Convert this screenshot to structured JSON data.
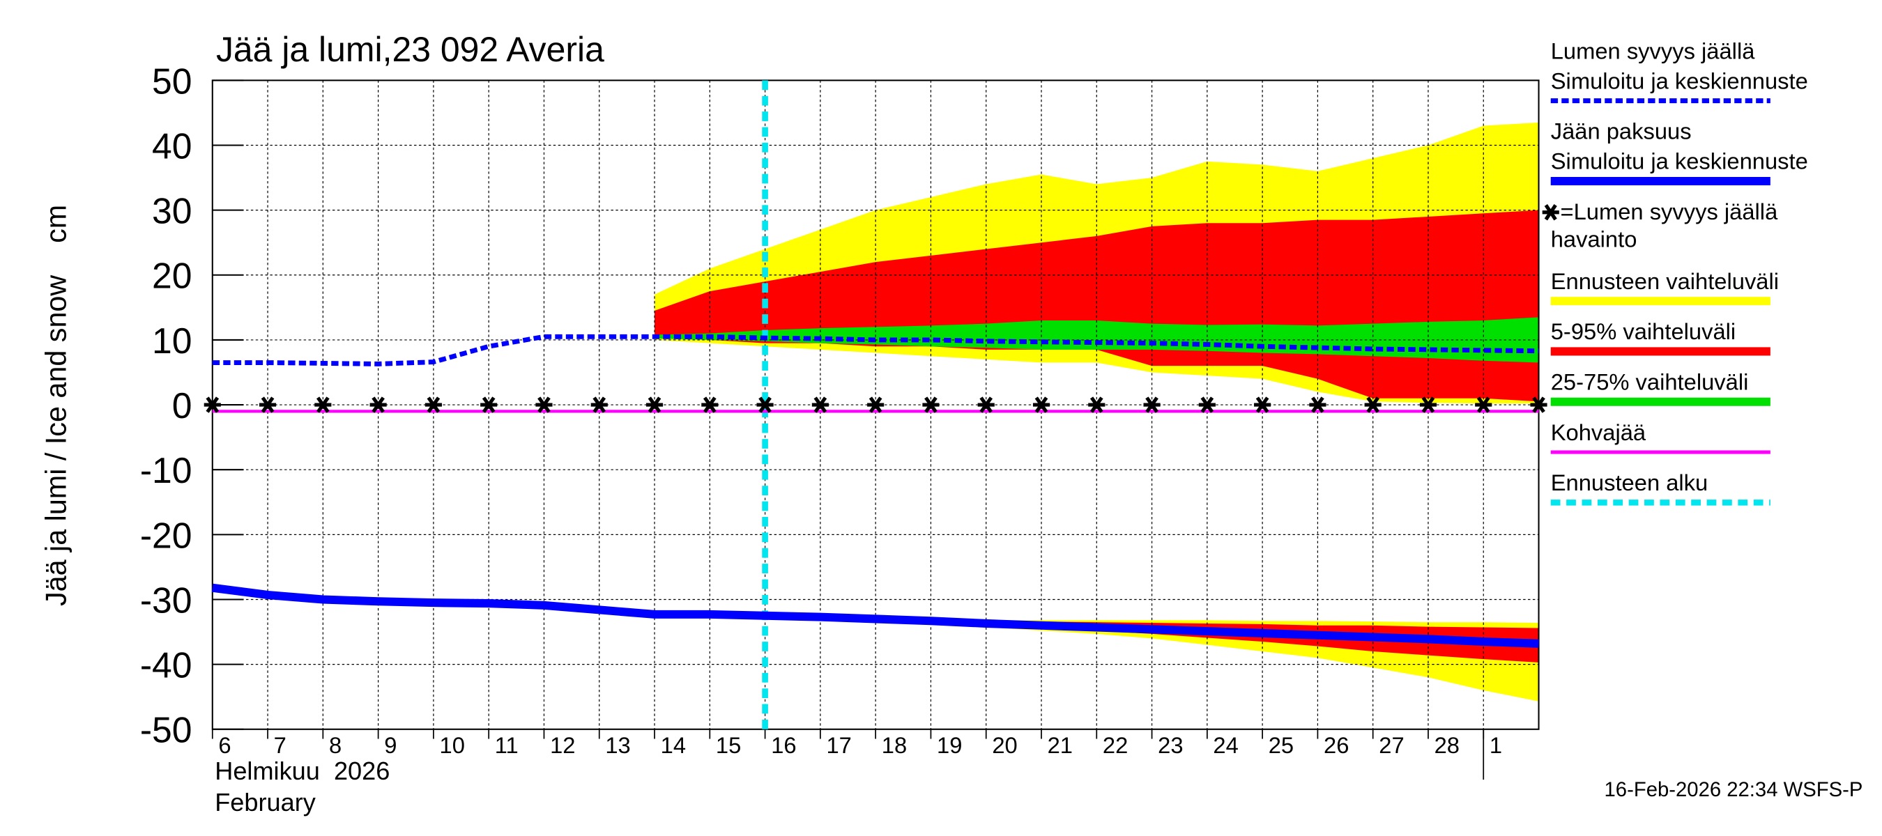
{
  "chart_data": {
    "type": "line",
    "title": "Jää ja lumi,23 092 Averia",
    "y_label": "Jää ja lumi / Ice and snow    cm",
    "x_label_lines": [
      "Helmikuu  2026",
      "February"
    ],
    "timestamp": "16-Feb-2026 22:34 WSFS-P",
    "categories": [
      "6",
      "7",
      "8",
      "9",
      "10",
      "11",
      "12",
      "13",
      "14",
      "15",
      "16",
      "17",
      "18",
      "19",
      "20",
      "21",
      "22",
      "23",
      "24",
      "25",
      "26",
      "27",
      "28",
      "1",
      null
    ],
    "ylim": [
      -50,
      50
    ],
    "yticks": [
      -50,
      -40,
      -30,
      -20,
      -10,
      0,
      10,
      20,
      30,
      40,
      50
    ],
    "grid": true,
    "series": [
      {
        "name": "Lumen syvyys jäällä",
        "name2": "Simuloitu ja keskiennuste",
        "style": "dashed",
        "color": "#0000ff",
        "values": [
          6.5,
          6.5,
          6.4,
          6.3,
          6.6,
          9,
          10.5,
          10.5,
          10.5,
          10.5,
          10.3,
          10.2,
          10,
          10,
          9.8,
          9.7,
          9.6,
          9.5,
          9.3,
          9,
          8.8,
          8.6,
          8.5,
          8.4,
          8.3
        ]
      },
      {
        "name": "Jään paksuus",
        "name2": "Simuloitu ja keskiennuste",
        "style": "solid",
        "color": "#0000ff",
        "values": [
          -28.2,
          -29.3,
          -30,
          -30.3,
          -30.5,
          -30.6,
          -30.9,
          -31.6,
          -32.3,
          -32.3,
          -32.5,
          -32.7,
          -33,
          -33.3,
          -33.7,
          -34,
          -34.3,
          -34.6,
          -34.9,
          -35.2,
          -35.5,
          -35.8,
          -36.1,
          -36.5,
          -36.8
        ]
      },
      {
        "name": "=Lumen syvyys jäällä",
        "name2": "havainto",
        "style": "stars",
        "color": "#000000",
        "values": [
          0,
          0,
          0,
          0,
          0,
          0,
          0,
          0,
          0,
          0,
          0,
          0,
          0,
          0,
          0,
          0,
          0,
          0,
          0,
          0,
          0,
          0,
          0,
          0,
          0
        ]
      },
      {
        "name": "Ennusteen vaihteluväli",
        "style": "band",
        "color": "#ffff00",
        "snow_high": [
          null,
          null,
          null,
          null,
          null,
          null,
          null,
          null,
          17,
          21,
          24,
          27,
          30,
          32,
          34,
          35.5,
          34,
          35,
          37.5,
          37,
          36,
          38,
          40,
          43,
          43.5
        ],
        "snow_low": [
          null,
          null,
          null,
          null,
          null,
          null,
          null,
          null,
          10,
          9.5,
          9,
          8.5,
          8,
          7.5,
          7,
          6.5,
          6.5,
          5,
          4.5,
          4,
          2,
          0.5,
          0.3,
          0.2,
          0.2
        ],
        "ice_high": [
          null,
          null,
          null,
          null,
          null,
          null,
          null,
          null,
          -32.2,
          -32.3,
          -32.4,
          -32.6,
          -32.8,
          -33,
          -33.2,
          -33.2,
          -33.2,
          -33.2,
          -33.2,
          -33.3,
          -33.3,
          -33.4,
          -33.5,
          -33.5,
          -33.6
        ],
        "ice_low": [
          null,
          null,
          null,
          null,
          null,
          null,
          null,
          null,
          -32.4,
          -32.5,
          -32.7,
          -33,
          -33.3,
          -33.8,
          -34.3,
          -34.8,
          -35.3,
          -36,
          -37,
          -38,
          -39,
          -40.5,
          -42,
          -44,
          -45.7
        ]
      },
      {
        "name": "5-95% vaihteluväli",
        "style": "band",
        "color": "#ff0000",
        "snow_high": [
          null,
          null,
          null,
          null,
          null,
          null,
          null,
          null,
          14.5,
          17.5,
          19,
          20.5,
          22,
          23,
          24,
          25,
          26,
          27.5,
          28,
          28,
          28.5,
          28.5,
          29,
          29.5,
          30
        ],
        "snow_low": [
          null,
          null,
          null,
          null,
          null,
          null,
          null,
          null,
          10.5,
          10,
          9.5,
          9.5,
          9,
          9,
          8.5,
          8.5,
          8.5,
          6,
          6,
          6,
          4,
          1,
          1,
          1,
          0.5
        ],
        "ice_high": [
          null,
          null,
          null,
          null,
          null,
          null,
          null,
          null,
          -32.3,
          -32.4,
          -32.5,
          -32.7,
          -32.9,
          -33.1,
          -33.3,
          -33.4,
          -33.5,
          -33.6,
          -33.7,
          -33.8,
          -34,
          -34,
          -34.2,
          -34.3,
          -34.4
        ],
        "ice_low": [
          null,
          null,
          null,
          null,
          null,
          null,
          null,
          null,
          -32.3,
          -32.5,
          -32.6,
          -32.9,
          -33.2,
          -33.6,
          -34,
          -34.4,
          -34.8,
          -35.3,
          -35.9,
          -36.5,
          -37.2,
          -38,
          -38.6,
          -39.2,
          -39.7
        ]
      },
      {
        "name": "25-75% vaihteluväli",
        "style": "band",
        "color": "#00e000",
        "snow_high": [
          null,
          null,
          null,
          null,
          null,
          null,
          null,
          null,
          10.8,
          11,
          11.5,
          11.8,
          12,
          12.2,
          12.5,
          13,
          13,
          12.5,
          12.3,
          12.4,
          12.2,
          12.5,
          12.8,
          13,
          13.5
        ],
        "snow_low": [
          null,
          null,
          null,
          null,
          null,
          null,
          null,
          null,
          10.2,
          10,
          9.8,
          9.5,
          9.3,
          9,
          8.8,
          8.5,
          8.5,
          8.5,
          8.3,
          8,
          7.8,
          7.5,
          7.2,
          6.8,
          6.5
        ],
        "ice_high": [
          null,
          null,
          null,
          null,
          null,
          null,
          null,
          null,
          -31.9,
          -31.9,
          -32.1,
          -32.3,
          -32.6,
          -32.9,
          -33.3,
          -33.6,
          -33.9,
          -34.2,
          -34.5,
          -34.8,
          -35.1,
          -35.4,
          -35.7,
          -36.1,
          -36.4
        ],
        "ice_low": [
          null,
          null,
          null,
          null,
          null,
          null,
          null,
          null,
          -32.8,
          -32.8,
          -33,
          -33.2,
          -33.5,
          -33.8,
          -34.2,
          -34.5,
          -34.8,
          -35.1,
          -35.4,
          -35.7,
          -36,
          -36.3,
          -36.6,
          -37,
          -37.3
        ]
      },
      {
        "name": "Kohvajää",
        "style": "solid-thin",
        "color": "#ff00ff",
        "values": [
          -1,
          -1,
          -1,
          -1,
          -1,
          -1,
          -1,
          -1,
          -1,
          -1,
          -1,
          -1,
          -1,
          -1,
          -1,
          -1,
          -1,
          -1,
          -1,
          -1,
          -1,
          -1,
          -1,
          -1,
          -1
        ]
      }
    ],
    "forecast_start": {
      "name": "Ennusteen alku",
      "color": "#00e5ee",
      "x": 10
    }
  }
}
